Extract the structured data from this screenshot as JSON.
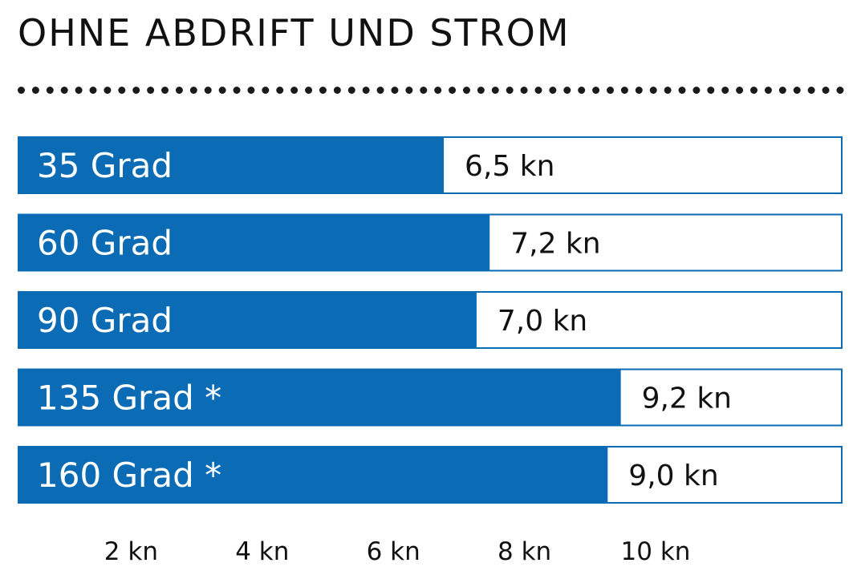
{
  "title": "OHNE ABDRIFT UND STROM",
  "colors": {
    "bar_fill": "#0b6cb5",
    "track_border": "#0b6cb5",
    "text": "#111111",
    "background": "#ffffff"
  },
  "chart_data": {
    "type": "bar",
    "orientation": "horizontal",
    "title": "OHNE ABDRIFT UND STROM",
    "categories": [
      "35 Grad",
      "60 Grad",
      "90 Grad",
      "135 Grad *",
      "160 Grad *"
    ],
    "values": [
      6.5,
      7.2,
      7.0,
      9.2,
      9.0
    ],
    "value_labels": [
      "6,5 kn",
      "7,2 kn",
      "7,0 kn",
      "9,2 kn",
      "9,0 kn"
    ],
    "xticks": [
      2,
      4,
      6,
      8,
      10
    ],
    "xtick_labels": [
      "2 kn",
      "4 kn",
      "6 kn",
      "8 kn",
      "10 kn"
    ],
    "xlabel": "",
    "ylabel": "",
    "xlim": [
      0,
      12
    ],
    "grid": false,
    "legend": "none"
  }
}
